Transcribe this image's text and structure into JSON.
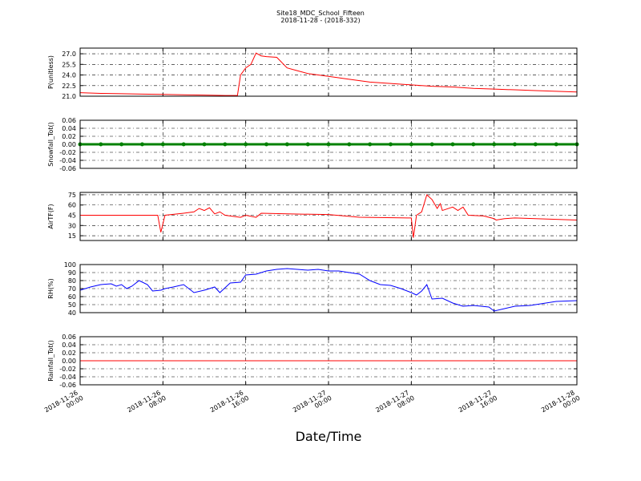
{
  "chart_data": [
    {
      "type": "line",
      "title": "Site18_MDC_School_Fifteen",
      "subtitle": "2018-11-28 - (2018-332)",
      "ylabel": "P(unitless)",
      "grid": true,
      "xlim": [
        0,
        48
      ],
      "xticks": [
        0,
        8,
        16,
        24,
        32,
        40,
        48
      ],
      "ylim": [
        21,
        27.8
      ],
      "yticks": [
        {
          "value": 21,
          "label": "21.0"
        },
        {
          "value": 22.5,
          "label": "22.5"
        },
        {
          "value": 24,
          "label": "24.0"
        },
        {
          "value": 25.5,
          "label": "25.5"
        },
        {
          "value": 27,
          "label": "27.0"
        }
      ],
      "x": [
        0,
        2,
        4,
        6,
        8,
        10,
        12,
        14,
        15.2,
        15.5,
        16,
        16.5,
        17,
        17.5,
        18,
        19,
        20,
        21,
        22,
        24,
        26,
        28,
        30,
        32,
        34,
        36,
        38,
        40,
        42,
        44,
        46,
        48
      ],
      "series": [
        {
          "color": "#ff0000",
          "values": [
            21.5,
            21.4,
            21.35,
            21.3,
            21.25,
            21.2,
            21.15,
            21.1,
            21.1,
            24.0,
            25.0,
            25.5,
            27.1,
            26.7,
            26.6,
            26.5,
            25.0,
            24.6,
            24.2,
            23.8,
            23.4,
            23.0,
            22.8,
            22.6,
            22.4,
            22.3,
            22.1,
            22.0,
            21.9,
            21.8,
            21.7,
            21.6
          ]
        }
      ]
    },
    {
      "type": "line",
      "ylabel": "Snowfall_Tot()",
      "grid": true,
      "xlim": [
        0,
        48
      ],
      "xticks": [
        0,
        8,
        16,
        24,
        32,
        40,
        48
      ],
      "ylim": [
        -0.06,
        0.06
      ],
      "yticks": [
        {
          "value": -0.06,
          "label": "-0.06"
        },
        {
          "value": -0.04,
          "label": "-0.04"
        },
        {
          "value": -0.02,
          "label": "-0.02"
        },
        {
          "value": 0,
          "label": "0.00"
        },
        {
          "value": 0.02,
          "label": "0.02"
        },
        {
          "value": 0.04,
          "label": "0.04"
        },
        {
          "value": 0.06,
          "label": "0.06"
        }
      ],
      "x": [
        0,
        2,
        4,
        6,
        8,
        10,
        12,
        14,
        16,
        18,
        20,
        22,
        24,
        26,
        28,
        30,
        32,
        34,
        36,
        38,
        40,
        42,
        44,
        46,
        48
      ],
      "series": [
        {
          "color": "#008000",
          "marker": true,
          "values": [
            0,
            0,
            0,
            0,
            0,
            0,
            0,
            0,
            0,
            0,
            0,
            0,
            0,
            0,
            0,
            0,
            0,
            0,
            0,
            0,
            0,
            0,
            0,
            0,
            0
          ]
        }
      ]
    },
    {
      "type": "line",
      "ylabel": "AirTF(F)",
      "grid": true,
      "xlim": [
        0,
        48
      ],
      "xticks": [
        0,
        8,
        16,
        24,
        32,
        40,
        48
      ],
      "ylim": [
        8,
        78.5
      ],
      "yticks": [
        15,
        30,
        45,
        60,
        75
      ],
      "x": [
        0,
        4,
        7.5,
        7.8,
        8.2,
        10,
        11,
        11.5,
        12,
        12.5,
        13,
        13.5,
        14,
        15.5,
        16,
        17,
        17.5,
        20,
        24,
        27,
        32,
        32.2,
        32.5,
        33,
        33.5,
        34,
        34.5,
        34.8,
        35,
        36,
        36.5,
        37,
        37.5,
        39,
        40,
        40.2,
        41,
        42,
        48
      ],
      "series": [
        {
          "color": "#ff0000",
          "values": [
            45,
            45,
            45,
            20,
            45,
            48,
            50,
            55,
            52,
            56,
            47,
            50,
            45,
            42,
            45,
            42,
            48,
            47,
            46,
            42,
            41,
            12,
            45,
            50,
            75,
            68,
            55,
            62,
            52,
            57,
            52,
            57,
            45,
            44,
            40,
            38,
            40,
            41,
            38
          ]
        }
      ]
    },
    {
      "type": "line",
      "ylabel": "RH(%)",
      "grid": true,
      "xlim": [
        0,
        48
      ],
      "xticks": [
        0,
        8,
        16,
        24,
        32,
        40,
        48
      ],
      "ylim": [
        40,
        100
      ],
      "yticks": [
        40,
        50,
        60,
        70,
        80,
        90,
        100
      ],
      "x": [
        0,
        1,
        2,
        3,
        3.5,
        4,
        4.5,
        5,
        5.7,
        6.5,
        7,
        7.8,
        8.2,
        9,
        10,
        11,
        12,
        13,
        13.5,
        14.5,
        15.5,
        16,
        17,
        18,
        19,
        20,
        22,
        23,
        24,
        25,
        26,
        27,
        28,
        29,
        30,
        31,
        32,
        32.5,
        33,
        33.5,
        34,
        35,
        36,
        37,
        38,
        39.5,
        40,
        41,
        42,
        43.5,
        45,
        46,
        48
      ],
      "series": [
        {
          "color": "#0000ff",
          "values": [
            68,
            72,
            75,
            76,
            73,
            75,
            70,
            73,
            80,
            75,
            67,
            68,
            70,
            72,
            75,
            65,
            68,
            72,
            65,
            77,
            78,
            87,
            88,
            92,
            94,
            95,
            93,
            94,
            92,
            92,
            90,
            88,
            80,
            75,
            74,
            70,
            65,
            62,
            67,
            75,
            57,
            58,
            52,
            48,
            49,
            47,
            42,
            45,
            48,
            49,
            52,
            54,
            55
          ]
        }
      ]
    },
    {
      "type": "line",
      "ylabel": "Rainfall_Tot()",
      "xlabel": "Date/Time",
      "grid": true,
      "xlim": [
        0,
        48
      ],
      "xticks": [
        {
          "value": 0,
          "label": "2018-11-26 00:00"
        },
        {
          "value": 8,
          "label": "2018-11-26 08:00"
        },
        {
          "value": 16,
          "label": "2018-11-26 16:00"
        },
        {
          "value": 24,
          "label": "2018-11-27 00:00"
        },
        {
          "value": 32,
          "label": "2018-11-27 08:00"
        },
        {
          "value": 40,
          "label": "2018-11-27 16:00"
        },
        {
          "value": 48,
          "label": "2018-11-28 00:00"
        }
      ],
      "ylim": [
        -0.06,
        0.06
      ],
      "yticks": [
        {
          "value": -0.06,
          "label": "-0.06"
        },
        {
          "value": -0.04,
          "label": "-0.04"
        },
        {
          "value": -0.02,
          "label": "-0.02"
        },
        {
          "value": 0,
          "label": "0.00"
        },
        {
          "value": 0.02,
          "label": "0.02"
        },
        {
          "value": 0.04,
          "label": "0.04"
        },
        {
          "value": 0.06,
          "label": "0.06"
        }
      ],
      "x": [
        0,
        8,
        16,
        24,
        32,
        40,
        48
      ],
      "series": [
        {
          "color": "#ff0000",
          "values": [
            0,
            0,
            0,
            0,
            0,
            0,
            0
          ]
        }
      ]
    }
  ]
}
